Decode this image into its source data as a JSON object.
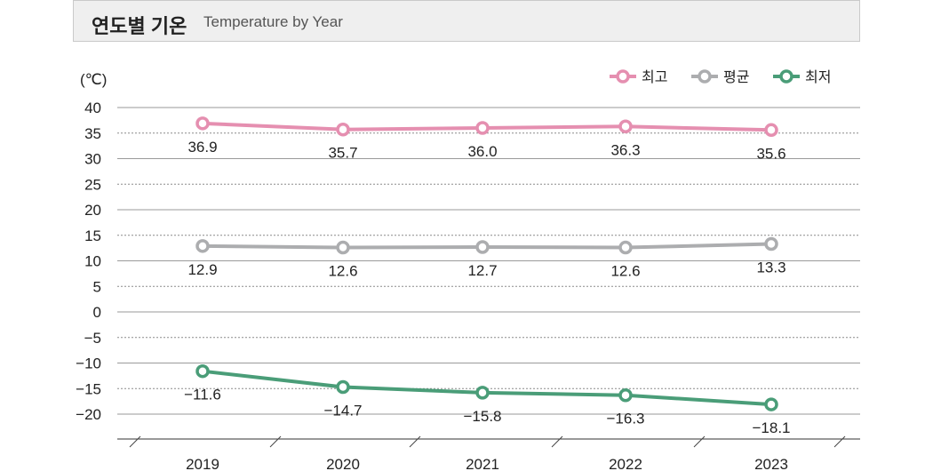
{
  "header": {
    "title_ko": "연도별 기온",
    "title_en": "Temperature by Year"
  },
  "chart_data": {
    "type": "line",
    "title": "연도별 기온 Temperature by Year",
    "ylabel": "(℃)",
    "ylim": [
      -20,
      40
    ],
    "yticks": [
      40,
      35,
      30,
      25,
      20,
      15,
      10,
      5,
      0,
      -5,
      -10,
      -15,
      -20
    ],
    "yticks_text": [
      "40",
      "35",
      "30",
      "25",
      "20",
      "15",
      "10",
      "5",
      "0",
      "−5",
      "−10",
      "−15",
      "−20"
    ],
    "categories": [
      "2019",
      "2020",
      "2021",
      "2022",
      "2023"
    ],
    "legend_position": "top-right",
    "grid": true,
    "series": [
      {
        "name": "최고",
        "color": "#e58fb0",
        "values": [
          36.9,
          35.7,
          36.0,
          36.3,
          35.6
        ],
        "labels": [
          "36.9",
          "35.7",
          "36.0",
          "36.3",
          "35.6"
        ]
      },
      {
        "name": "평균",
        "color": "#acadaf",
        "values": [
          12.9,
          12.6,
          12.7,
          12.6,
          13.3
        ],
        "labels": [
          "12.9",
          "12.6",
          "12.7",
          "12.6",
          "13.3"
        ]
      },
      {
        "name": "최저",
        "color": "#4a9d78",
        "values": [
          -11.6,
          -14.7,
          -15.8,
          -16.3,
          -18.1
        ],
        "labels": [
          "−11.6",
          "−14.7",
          "−15.8",
          "−16.3",
          "−18.1"
        ]
      }
    ]
  }
}
